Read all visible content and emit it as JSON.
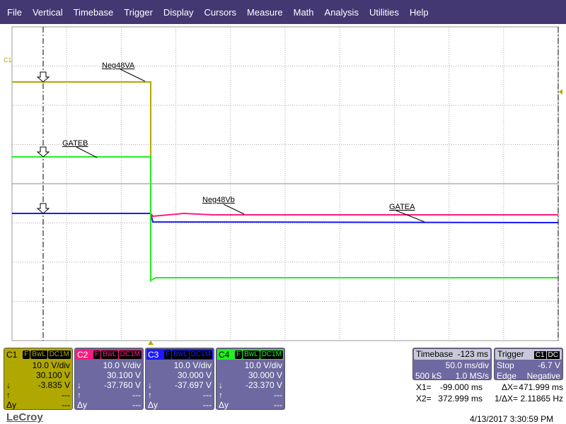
{
  "menu": [
    "File",
    "Vertical",
    "Timebase",
    "Trigger",
    "Display",
    "Cursors",
    "Measure",
    "Math",
    "Analysis",
    "Utilities",
    "Help"
  ],
  "trace_labels": {
    "c1": "Neg48VA",
    "c4": "GATEB",
    "c2": "Neg48Vb",
    "c3": "GATEA"
  },
  "channel_marker": "C1",
  "channels": [
    {
      "name": "C1",
      "color": "#b0a800",
      "text": "#000",
      "tags": [
        "F",
        "BwL",
        "DC1M"
      ],
      "vdiv": "10.0 V/div",
      "offset": "30.100 V",
      "down": "-3.835 V",
      "up": "---",
      "dy": "---"
    },
    {
      "name": "C2",
      "color": "#ff1a80",
      "text": "#fff",
      "tags": [
        "F",
        "BwL",
        "DC1M"
      ],
      "vdiv": "10.0 V/div",
      "offset": "30.100 V",
      "down": "-37.760 V",
      "up": "---",
      "dy": "---"
    },
    {
      "name": "C3",
      "color": "#1a1aff",
      "text": "#fff",
      "tags": [
        "F",
        "BwL",
        "DC1M"
      ],
      "vdiv": "10.0 V/div",
      "offset": "30.000 V",
      "down": "-37.697 V",
      "up": "---",
      "dy": "---"
    },
    {
      "name": "C4",
      "color": "#22ee22",
      "text": "#000",
      "tags": [
        "F",
        "BwL",
        "DC1M"
      ],
      "vdiv": "10.0 V/div",
      "offset": "30.000 V",
      "down": "-23.370 V",
      "up": "---",
      "dy": "---"
    }
  ],
  "row_symbols": {
    "down": "↓",
    "up": "↑",
    "dy": "Δy"
  },
  "timebase": {
    "label": "Timebase",
    "delay": "-123 ms",
    "tdiv": "50.0 ms/div",
    "samples": "500 kS",
    "rate": "1.0 MS/s"
  },
  "trigger": {
    "label": "Trigger",
    "src": "C1",
    "coupling": "DC",
    "mode": "Stop",
    "level": "-6.7 V",
    "type": "Edge",
    "slope": "Negative"
  },
  "cursors": {
    "x1_label": "X1=",
    "x1": "-99.000 ms",
    "x2_label": "X2=",
    "x2": "372.999 ms",
    "dx_label": "ΔX=",
    "dx": "471.999 ms",
    "inv_label": "1/ΔX=",
    "inv": "2.11865 Hz"
  },
  "brand": "LeCroy",
  "timestamp": "4/13/2017 3:30:59 PM",
  "colors": {
    "menu": "#433872",
    "c1": "#b0a800",
    "c2": "#ff1a80",
    "c3": "#1a1aff",
    "c4": "#22ee22"
  }
}
